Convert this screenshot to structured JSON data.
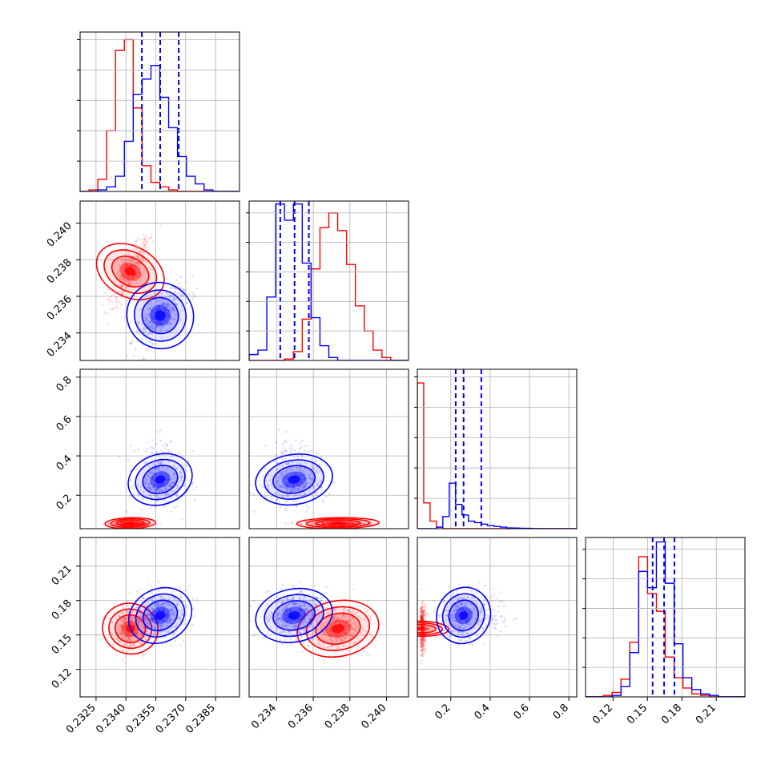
{
  "chart_data": {
    "type": "corner",
    "grid": true,
    "colors": {
      "series_a": "#ff0000",
      "series_b": "#0000ff"
    },
    "series": [
      {
        "color": "#ff0000"
      },
      {
        "color": "#0000ff"
      }
    ],
    "parameters": [
      {
        "range": [
          0.2317,
          0.2397
        ],
        "ticks": [
          "0.2325",
          "0.2340",
          "0.2355",
          "0.2370",
          "0.2385"
        ],
        "tick_values": [
          0.2325,
          0.234,
          0.2355,
          0.237,
          0.2385
        ]
      },
      {
        "range": [
          0.2325,
          0.2412
        ],
        "ticks": [
          "0.234",
          "0.236",
          "0.238",
          "0.240"
        ],
        "tick_values": [
          0.234,
          0.236,
          0.238,
          0.24
        ]
      },
      {
        "range": [
          0.03,
          0.84
        ],
        "ticks": [
          "0.2",
          "0.4",
          "0.6",
          "0.8"
        ],
        "tick_values": [
          0.2,
          0.4,
          0.6,
          0.8
        ]
      },
      {
        "range": [
          0.096,
          0.235
        ],
        "ticks": [
          "0.12",
          "0.15",
          "0.18",
          "0.21"
        ],
        "tick_values": [
          0.12,
          0.15,
          0.18,
          0.21
        ]
      }
    ],
    "histograms": [
      {
        "quantiles": [
          0.2348,
          0.23572,
          0.23665
        ],
        "ymax": 1.05,
        "bins": 18,
        "red": [
          0.0,
          0.01,
          0.08,
          0.4,
          0.93,
          1.0,
          0.55,
          0.17,
          0.06,
          0.03,
          0.01,
          0.0,
          0.0,
          0.0,
          0.0,
          0.0,
          0.0,
          0.0
        ],
        "blue": [
          0.0,
          0.0,
          0.01,
          0.03,
          0.1,
          0.33,
          0.64,
          0.74,
          0.83,
          0.62,
          0.42,
          0.23,
          0.1,
          0.05,
          0.01,
          0.0,
          0.0,
          0.0
        ]
      },
      {
        "quantiles": [
          0.2342,
          0.23498,
          0.23576
        ],
        "ymax": 1.08,
        "bins": 18,
        "red": [
          0.0,
          0.0,
          0.0,
          0.0,
          0.01,
          0.06,
          0.28,
          0.62,
          0.9,
          1.0,
          0.88,
          0.65,
          0.37,
          0.2,
          0.07,
          0.02,
          0.0,
          0.0
        ],
        "blue": [
          0.04,
          0.07,
          0.43,
          1.06,
          0.95,
          1.06,
          0.66,
          0.29,
          0.1,
          0.02,
          0.0,
          0.0,
          0.0,
          0.0,
          0.0,
          0.0,
          0.0,
          0.0
        ]
      },
      {
        "quantiles": [
          0.225,
          0.265,
          0.355
        ],
        "ymax": 1.05,
        "bins": 25,
        "red": [
          0.96,
          0.17,
          0.05,
          0.01,
          0.0,
          0.0,
          0.0,
          0.0,
          0.0,
          0.0,
          0.0,
          0.0,
          0.0,
          0.0,
          0.0,
          0.0,
          0.0,
          0.0,
          0.0,
          0.0,
          0.0,
          0.0,
          0.0,
          0.0,
          0.0
        ],
        "blue": [
          0.0,
          0.0,
          0.0,
          0.01,
          0.08,
          0.3,
          0.16,
          0.09,
          0.05,
          0.04,
          0.03,
          0.02,
          0.015,
          0.01,
          0.005,
          0.004,
          0.003,
          0.002,
          0.0,
          0.0,
          0.0,
          0.0,
          0.0,
          0.0,
          0.0
        ]
      },
      {
        "quantiles": [
          0.1545,
          0.1645,
          0.1735
        ],
        "ymax": 1.08,
        "bins": 18,
        "red": [
          0.0,
          0.0,
          0.01,
          0.03,
          0.12,
          0.37,
          0.95,
          0.7,
          0.58,
          0.27,
          0.13,
          0.06,
          0.02,
          0.01,
          0.0,
          0.0,
          0.0,
          0.0
        ],
        "blue": [
          0.0,
          0.0,
          0.0,
          0.01,
          0.07,
          0.3,
          0.85,
          0.74,
          1.05,
          0.77,
          0.36,
          0.13,
          0.05,
          0.02,
          0.01,
          0.0,
          0.0,
          0.0
        ]
      }
    ],
    "blobs": {
      "red": {
        "mean": [
          0.23422,
          0.23735,
          0.048,
          0.1555
        ],
        "sd": [
          0.00048,
          0.00085,
          0.012,
          0.0105
        ],
        "corr01": 0.78
      },
      "blue": {
        "mean": [
          0.23572,
          0.23495,
          0.265,
          0.167
        ],
        "sd": [
          0.00062,
          0.0008,
          0.055,
          0.01
        ],
        "corr01": 0.72
      }
    }
  }
}
